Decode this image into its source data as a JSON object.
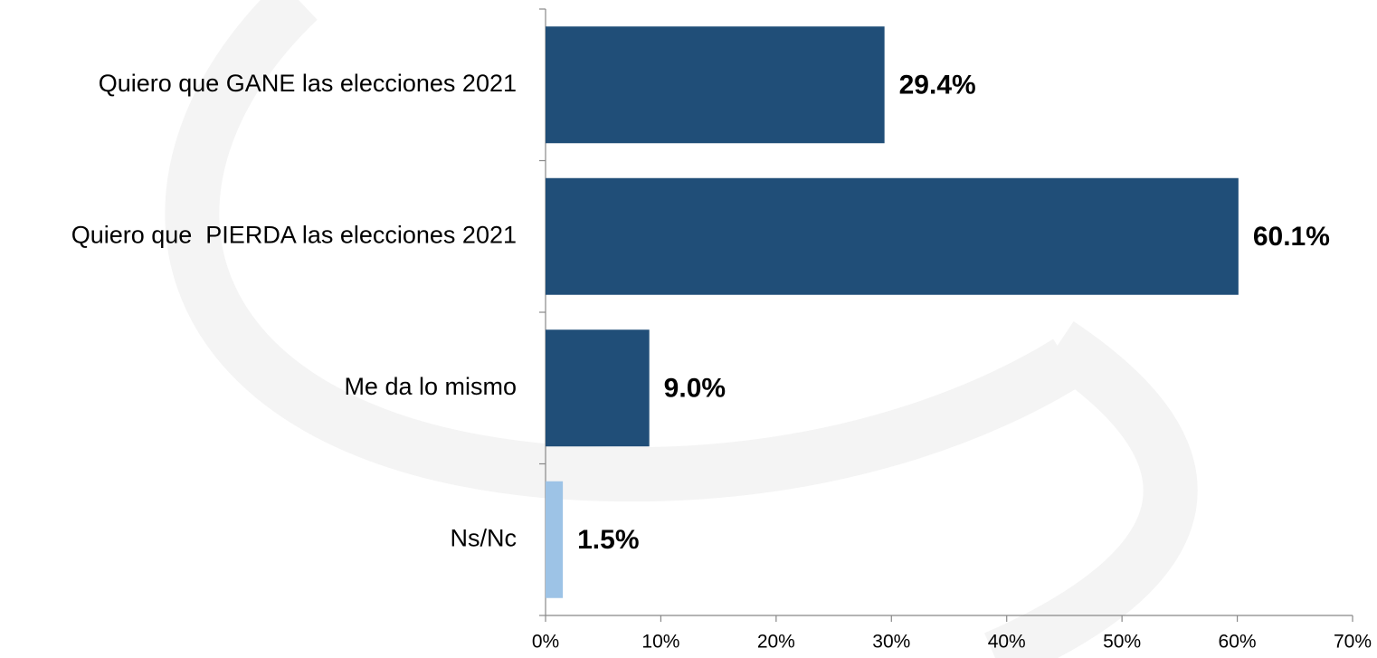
{
  "chart_data": {
    "type": "hbar",
    "categories": [
      "Quiero que GANE las elecciones 2021",
      "Quiero que  PIERDA las elecciones 2021",
      "Me da lo mismo",
      "Ns/Nc"
    ],
    "values": [
      29.4,
      60.1,
      9.0,
      1.5
    ],
    "value_labels": [
      "29.4%",
      "60.1%",
      "9.0%",
      "1.5%"
    ],
    "colors": [
      "#204e78",
      "#204e78",
      "#204e78",
      "#9dc3e6"
    ],
    "xlim": [
      0,
      70
    ],
    "xticks": [
      {
        "value": 0,
        "label": "0%"
      },
      {
        "value": 10,
        "label": "10%"
      },
      {
        "value": 20,
        "label": "20%"
      },
      {
        "value": 30,
        "label": "30%"
      },
      {
        "value": 40,
        "label": "40%"
      },
      {
        "value": 50,
        "label": "50%"
      },
      {
        "value": 60,
        "label": "60%"
      },
      {
        "value": 70,
        "label": "70%"
      }
    ]
  }
}
